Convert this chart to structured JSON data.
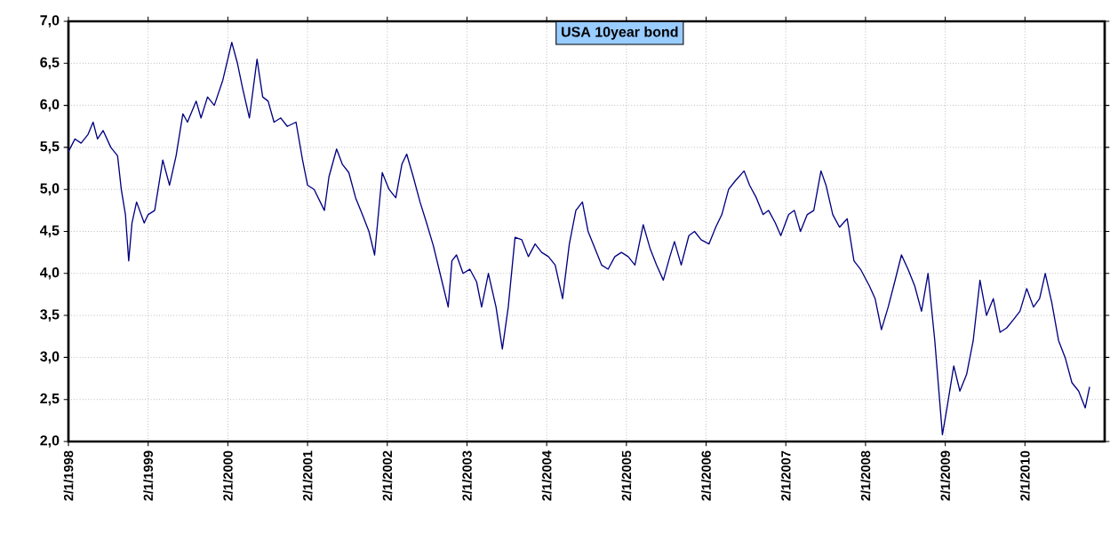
{
  "chart_data": {
    "type": "line",
    "title": "USA 10year bond",
    "x": [
      "1998-01-02",
      "1998-02-01",
      "1998-03-01",
      "1998-04-01",
      "1998-04-25",
      "1998-05-15",
      "1998-06-10",
      "1998-07-15",
      "1998-08-15",
      "1998-09-01",
      "1998-09-20",
      "1998-10-05",
      "1998-10-20",
      "1998-11-10",
      "1998-12-15",
      "1999-01-02",
      "1999-02-01",
      "1999-03-10",
      "1999-04-10",
      "1999-05-10",
      "1999-06-10",
      "1999-07-01",
      "1999-08-10",
      "1999-09-01",
      "1999-10-01",
      "1999-11-01",
      "1999-12-10",
      "2000-01-20",
      "2000-02-15",
      "2000-03-10",
      "2000-04-10",
      "2000-05-15",
      "2000-06-10",
      "2000-07-05",
      "2000-08-01",
      "2000-09-01",
      "2000-10-01",
      "2000-11-10",
      "2000-12-10",
      "2001-01-02",
      "2001-02-01",
      "2001-03-20",
      "2001-04-10",
      "2001-05-15",
      "2001-06-10",
      "2001-07-10",
      "2001-08-10",
      "2001-09-10",
      "2001-10-10",
      "2001-11-05",
      "2001-12-10",
      "2002-01-10",
      "2002-02-10",
      "2002-03-10",
      "2002-04-01",
      "2002-05-01",
      "2002-06-01",
      "2002-07-01",
      "2002-08-01",
      "2002-09-10",
      "2002-10-08",
      "2002-10-25",
      "2002-11-15",
      "2002-12-15",
      "2003-01-15",
      "2003-02-15",
      "2003-03-10",
      "2003-04-10",
      "2003-05-15",
      "2003-06-13",
      "2003-07-10",
      "2003-08-10",
      "2003-09-10",
      "2003-10-10",
      "2003-11-10",
      "2003-12-10",
      "2004-01-10",
      "2004-02-10",
      "2004-03-15",
      "2004-04-15",
      "2004-05-15",
      "2004-06-14",
      "2004-07-10",
      "2004-08-10",
      "2004-09-10",
      "2004-10-10",
      "2004-11-10",
      "2004-12-10",
      "2005-01-10",
      "2005-02-10",
      "2005-03-20",
      "2005-04-20",
      "2005-05-20",
      "2005-06-20",
      "2005-07-20",
      "2005-08-10",
      "2005-09-10",
      "2005-10-15",
      "2005-11-10",
      "2005-12-10",
      "2006-01-15",
      "2006-02-15",
      "2006-03-15",
      "2006-04-15",
      "2006-05-15",
      "2006-06-25",
      "2006-07-20",
      "2006-08-20",
      "2006-09-20",
      "2006-10-15",
      "2006-11-15",
      "2006-12-10",
      "2007-01-15",
      "2007-02-10",
      "2007-03-10",
      "2007-04-10",
      "2007-05-10",
      "2007-06-12",
      "2007-07-05",
      "2007-08-05",
      "2007-09-05",
      "2007-10-10",
      "2007-11-10",
      "2007-12-10",
      "2008-01-20",
      "2008-02-15",
      "2008-03-15",
      "2008-04-15",
      "2008-05-15",
      "2008-06-15",
      "2008-07-15",
      "2008-08-15",
      "2008-09-15",
      "2008-10-15",
      "2008-11-15",
      "2008-12-20",
      "2009-01-10",
      "2009-02-10",
      "2009-03-10",
      "2009-04-10",
      "2009-05-10",
      "2009-06-10",
      "2009-07-10",
      "2009-08-10",
      "2009-09-10",
      "2009-10-10",
      "2009-11-10",
      "2009-12-10",
      "2010-01-10",
      "2010-02-10",
      "2010-03-10",
      "2010-04-05",
      "2010-05-05",
      "2010-06-05",
      "2010-07-05",
      "2010-08-05",
      "2010-09-05",
      "2010-10-05",
      "2010-10-25"
    ],
    "series": [
      {
        "color": "#000080",
        "values": [
          5.45,
          5.6,
          5.55,
          5.65,
          5.8,
          5.6,
          5.7,
          5.5,
          5.4,
          5.0,
          4.7,
          4.15,
          4.6,
          4.85,
          4.6,
          4.7,
          4.75,
          5.35,
          5.05,
          5.4,
          5.9,
          5.8,
          6.05,
          5.85,
          6.1,
          6.0,
          6.3,
          6.75,
          6.5,
          6.2,
          5.85,
          6.55,
          6.1,
          6.05,
          5.8,
          5.85,
          5.75,
          5.8,
          5.35,
          5.05,
          5.0,
          4.75,
          5.15,
          5.48,
          5.3,
          5.2,
          4.9,
          4.7,
          4.5,
          4.22,
          5.2,
          5.0,
          4.9,
          5.3,
          5.42,
          5.15,
          4.85,
          4.6,
          4.33,
          3.9,
          3.6,
          4.15,
          4.22,
          4.0,
          4.05,
          3.9,
          3.6,
          4.0,
          3.6,
          3.1,
          3.6,
          4.43,
          4.4,
          4.2,
          4.35,
          4.25,
          4.2,
          4.1,
          3.7,
          4.35,
          4.75,
          4.85,
          4.5,
          4.3,
          4.1,
          4.05,
          4.2,
          4.25,
          4.2,
          4.1,
          4.58,
          4.3,
          4.1,
          3.92,
          4.2,
          4.38,
          4.1,
          4.45,
          4.5,
          4.4,
          4.35,
          4.55,
          4.7,
          5.0,
          5.1,
          5.22,
          5.05,
          4.9,
          4.7,
          4.75,
          4.6,
          4.45,
          4.7,
          4.75,
          4.5,
          4.7,
          4.75,
          5.22,
          5.05,
          4.7,
          4.55,
          4.65,
          4.15,
          4.05,
          3.85,
          3.7,
          3.33,
          3.6,
          3.9,
          4.22,
          4.05,
          3.85,
          3.55,
          4.0,
          3.2,
          2.08,
          2.4,
          2.9,
          2.6,
          2.8,
          3.2,
          3.92,
          3.5,
          3.7,
          3.3,
          3.35,
          3.45,
          3.55,
          3.82,
          3.6,
          3.7,
          4.0,
          3.65,
          3.2,
          3.0,
          2.7,
          2.6,
          2.4,
          2.65
        ]
      }
    ],
    "xlim": [
      "1998-01-02",
      "2011-01-02"
    ],
    "xticks": [
      {
        "value": "1998-01-02",
        "label": "2/1/1998"
      },
      {
        "value": "1999-01-02",
        "label": "2/1/1999"
      },
      {
        "value": "2000-01-02",
        "label": "2/1/2000"
      },
      {
        "value": "2001-01-02",
        "label": "2/1/2001"
      },
      {
        "value": "2002-01-02",
        "label": "2/1/2002"
      },
      {
        "value": "2003-01-02",
        "label": "2/1/2003"
      },
      {
        "value": "2004-01-02",
        "label": "2/1/2004"
      },
      {
        "value": "2005-01-02",
        "label": "2/1/2005"
      },
      {
        "value": "2006-01-02",
        "label": "2/1/2006"
      },
      {
        "value": "2007-01-02",
        "label": "2/1/2007"
      },
      {
        "value": "2008-01-02",
        "label": "2/1/2008"
      },
      {
        "value": "2009-01-02",
        "label": "2/1/2009"
      },
      {
        "value": "2010-01-02",
        "label": "2/1/2010"
      }
    ],
    "ylim": [
      2,
      7
    ],
    "yticks": [
      {
        "value": 2,
        "label": "2,0"
      },
      {
        "value": 2.5,
        "label": "2,5"
      },
      {
        "value": 3,
        "label": "3,0"
      },
      {
        "value": 3.5,
        "label": "3,5"
      },
      {
        "value": 4,
        "label": "4,0"
      },
      {
        "value": 4.5,
        "label": "4,5"
      },
      {
        "value": 5,
        "label": "5,0"
      },
      {
        "value": 5.5,
        "label": "5,5"
      },
      {
        "value": 6,
        "label": "6,0"
      },
      {
        "value": 6.5,
        "label": "6,5"
      },
      {
        "value": 7,
        "label": "7,0"
      }
    ],
    "grid": true,
    "marker": "none",
    "line_style": "solid"
  }
}
